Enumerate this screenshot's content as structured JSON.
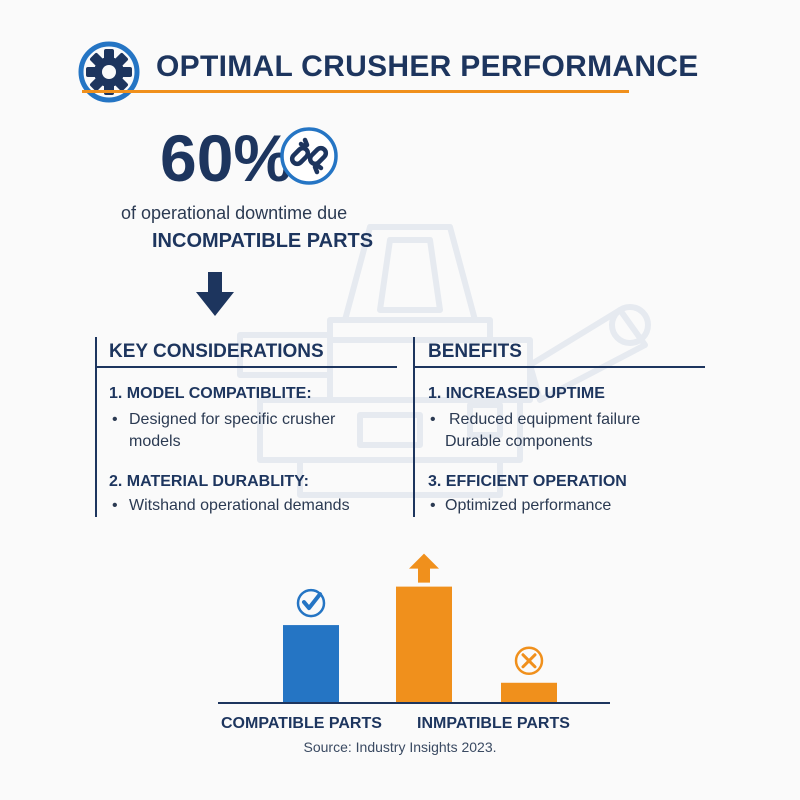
{
  "title": "OPTIMAL CRUSHER PERFORMANCE",
  "stat": {
    "value": "60%",
    "line1": "of operational downtime due",
    "line2": "INCOMPATIBLE PARTS"
  },
  "key_considerations": {
    "heading": "KEY CONSIDERATIONS",
    "items": [
      {
        "title": "1. MODEL COMPATIBLITE:",
        "bullets": [
          "Designed for specific crusher",
          "models"
        ]
      },
      {
        "title": "2. MATERIAL DURABLITY:",
        "bullets": [
          "Witshand operational demands"
        ]
      }
    ]
  },
  "benefits": {
    "heading": "BENEFITS",
    "items": [
      {
        "title": "1. INCREASED UPTIME",
        "bullets": [
          "Reduced equipment failure",
          "Durable components"
        ]
      },
      {
        "title": "3. EFFICIENT OPERATION",
        "bullets": [
          "Optimized performance"
        ]
      }
    ]
  },
  "bullet_char": "•",
  "chart_data": {
    "type": "bar",
    "title": "",
    "xlabel": "",
    "ylabel": "",
    "categories": [
      "COMPATIBLE PARTS",
      "INMPATIBLE PARTS"
    ],
    "bars": [
      {
        "group": "COMPATIBLE PARTS",
        "value": 80,
        "color": "#2575c4",
        "marker": "check-icon"
      },
      {
        "group": "INMPATIBLE PARTS",
        "value": 120,
        "color": "#f0901c",
        "marker": "up-arrow-icon"
      },
      {
        "group": "INMPATIBLE PARTS",
        "value": 20,
        "color": "#f0901c",
        "marker": "x-circle-icon"
      }
    ],
    "ylim": [
      0,
      130
    ],
    "grid": false
  },
  "source": "Source: Industry Insights 2023.",
  "colors": {
    "navy": "#1d355e",
    "orange": "#f0901c",
    "blue": "#2575c4"
  },
  "icons": [
    "gear-icon",
    "broken-link-icon",
    "down-arrow-icon",
    "crusher-watermark"
  ]
}
